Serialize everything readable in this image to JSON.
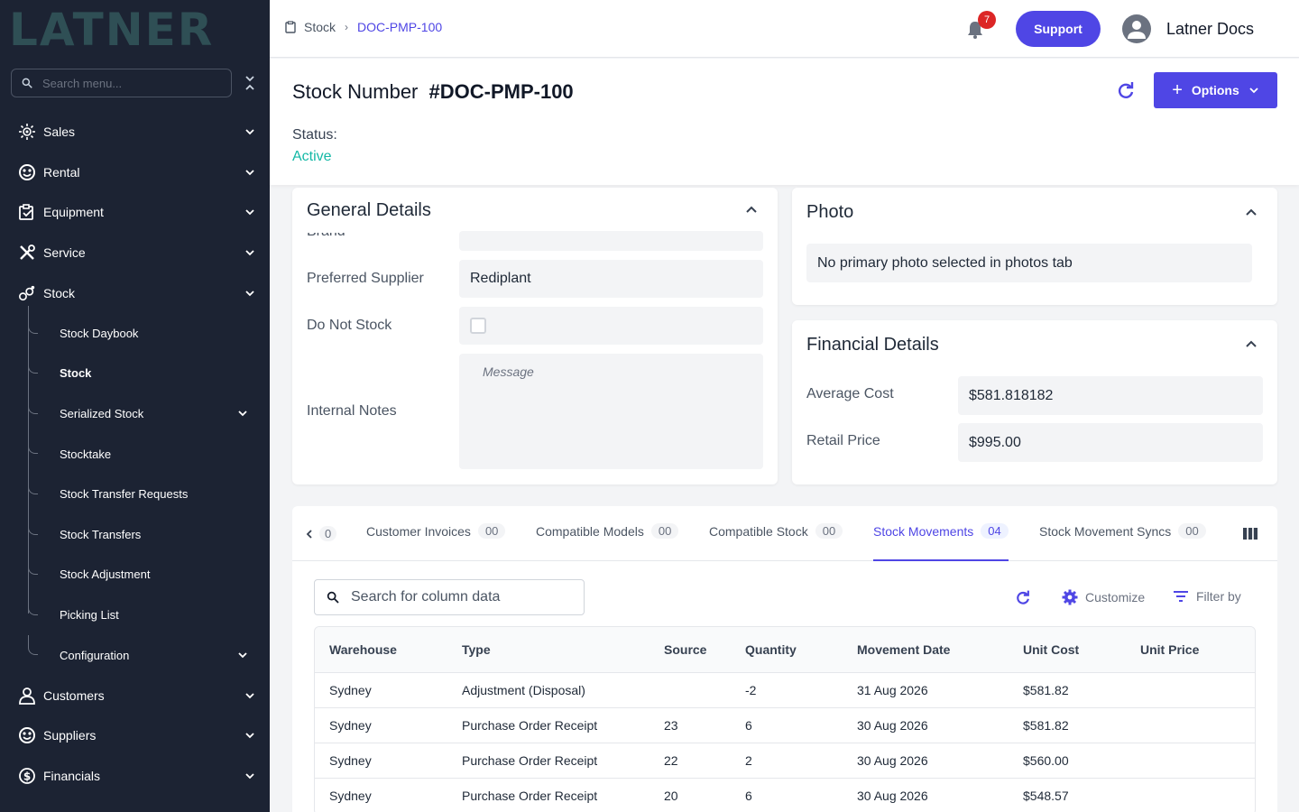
{
  "sidebar": {
    "logo": "LATNER",
    "search_placeholder": "Search menu...",
    "items": [
      {
        "label": "Sales"
      },
      {
        "label": "Rental"
      },
      {
        "label": "Equipment"
      },
      {
        "label": "Service"
      },
      {
        "label": "Stock"
      }
    ],
    "stock_sub": [
      {
        "label": "Stock Daybook"
      },
      {
        "label": "Stock"
      },
      {
        "label": "Serialized Stock"
      },
      {
        "label": "Stocktake"
      },
      {
        "label": "Stock Transfer Requests"
      },
      {
        "label": "Stock Transfers"
      },
      {
        "label": "Stock Adjustment"
      },
      {
        "label": "Picking List"
      },
      {
        "label": "Configuration"
      }
    ],
    "items_after": [
      {
        "label": "Customers"
      },
      {
        "label": "Suppliers"
      },
      {
        "label": "Financials"
      }
    ]
  },
  "topbar": {
    "breadcrumb_root": "Stock",
    "breadcrumb_current": "DOC-PMP-100",
    "notification_count": "7",
    "support_label": "Support",
    "user_name": "Latner Docs"
  },
  "header": {
    "title_prefix": "Stock Number",
    "title_number": "#DOC-PMP-100",
    "options_label": "Options",
    "status_label": "Status:",
    "status_value": "Active",
    "status_color": "#14b8a6"
  },
  "general": {
    "title": "General Details",
    "brand_label": "Brand",
    "supplier_label": "Preferred Supplier",
    "supplier_value": "Rediplant",
    "do_not_stock_label": "Do Not Stock",
    "internal_notes_label": "Internal Notes",
    "notes_placeholder": "Message"
  },
  "photo": {
    "title": "Photo",
    "empty_text": "No primary photo selected in photos tab"
  },
  "financial": {
    "title": "Financial Details",
    "avg_cost_label": "Average Cost",
    "avg_cost_value": "$581.818182",
    "retail_label": "Retail Price",
    "retail_value": "$995.00"
  },
  "tabs": {
    "hidden_count": "0",
    "items": [
      {
        "label": "Customer Invoices",
        "count": "00"
      },
      {
        "label": "Compatible Models",
        "count": "00"
      },
      {
        "label": "Compatible Stock",
        "count": "00"
      },
      {
        "label": "Stock Movements",
        "count": "04"
      },
      {
        "label": "Stock Movement Syncs",
        "count": "00"
      }
    ]
  },
  "table": {
    "search_placeholder": "Search for column data",
    "customize_label": "Customize",
    "filter_label": "Filter by",
    "columns": [
      "Warehouse",
      "Type",
      "Source",
      "Quantity",
      "Movement Date",
      "Unit Cost",
      "Unit Price"
    ],
    "rows": [
      [
        "Sydney",
        "Adjustment (Disposal)",
        "",
        "-2",
        "31 Aug 2026",
        "$581.82",
        ""
      ],
      [
        "Sydney",
        "Purchase Order Receipt",
        "23",
        "6",
        "30 Aug 2026",
        "$581.82",
        ""
      ],
      [
        "Sydney",
        "Purchase Order Receipt",
        "22",
        "2",
        "30 Aug 2026",
        "$560.00",
        ""
      ],
      [
        "Sydney",
        "Purchase Order Receipt",
        "20",
        "6",
        "30 Aug 2026",
        "$548.57",
        ""
      ]
    ]
  },
  "colors": {
    "accent": "#4f46e5",
    "sidebar_bg": "#1c2333",
    "badge": "#dc2626"
  }
}
